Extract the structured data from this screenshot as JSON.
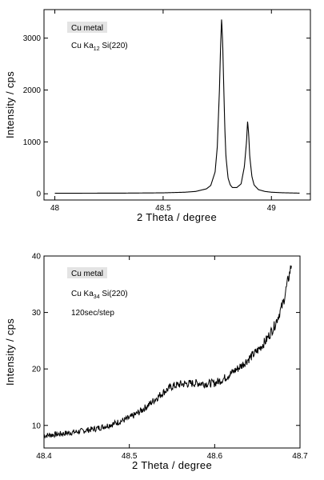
{
  "chart_data": [
    {
      "type": "line",
      "xlabel": "2 Theta / degree",
      "ylabel": "Intensity / cps",
      "xlim": [
        47.95,
        49.18
      ],
      "ylim": [
        -120,
        3550
      ],
      "xticks": [
        48,
        48.5,
        49
      ],
      "xtick_labels": [
        "48",
        "48.5",
        "49"
      ],
      "yticks": [
        0,
        1000,
        2000,
        3000
      ],
      "ytick_labels": [
        "0",
        "1000",
        "2000",
        "3000"
      ],
      "grid": false,
      "legend": "none",
      "annotations": {
        "sample": "Cu metal",
        "radiation_main": "Cu Ka",
        "radiation_sub": "12",
        "radiation_rest": " Si(220)"
      },
      "series": [
        {
          "x": [
            48.0,
            48.3,
            48.5,
            48.6,
            48.65,
            48.7,
            48.72,
            48.74,
            48.75,
            48.76,
            48.765,
            48.77,
            48.775,
            48.78,
            48.785,
            48.79,
            48.8,
            48.81,
            48.82,
            48.84,
            48.86,
            48.875,
            48.885,
            48.89,
            48.895,
            48.9,
            48.91,
            48.92,
            48.94,
            48.97,
            49.0,
            49.05,
            49.1,
            49.13
          ],
          "y": [
            10,
            12,
            18,
            30,
            45,
            95,
            160,
            420,
            900,
            2000,
            2800,
            3380,
            2900,
            2050,
            1250,
            720,
            300,
            170,
            120,
            120,
            190,
            520,
            1000,
            1400,
            1150,
            720,
            330,
            170,
            80,
            45,
            30,
            20,
            15,
            12
          ]
        }
      ]
    },
    {
      "type": "line",
      "xlabel": "2 Theta / degree",
      "ylabel": "Intensity / cps",
      "xlim": [
        48.4,
        48.7
      ],
      "ylim": [
        6,
        40
      ],
      "xticks": [
        48.4,
        48.5,
        48.6,
        48.7
      ],
      "xtick_labels": [
        "48.4",
        "48.5",
        "48.6",
        "48.7"
      ],
      "yticks": [
        10,
        20,
        30,
        40
      ],
      "ytick_labels": [
        "10",
        "20",
        "30",
        "40"
      ],
      "grid": false,
      "legend": "none",
      "annotations": {
        "sample": "Cu metal",
        "radiation_main": "Cu Ka",
        "radiation_sub": "34",
        "radiation_rest": " Si(220)",
        "step": "120sec/step"
      },
      "series": [
        {
          "x": [
            48.4,
            48.42,
            48.44,
            48.46,
            48.48,
            48.5,
            48.51,
            48.52,
            48.53,
            48.54,
            48.55,
            48.56,
            48.57,
            48.58,
            48.59,
            48.6,
            48.61,
            48.62,
            48.63,
            48.64,
            48.65,
            48.66,
            48.67,
            48.68,
            48.69
          ],
          "y": [
            8.2,
            8.5,
            8.9,
            9.4,
            10.2,
            11.3,
            12.2,
            13.3,
            14.6,
            15.9,
            16.9,
            17.3,
            17.4,
            17.5,
            17.4,
            17.5,
            18.2,
            19.3,
            20.4,
            21.8,
            23.2,
            25.0,
            27.6,
            31.5,
            38.5
          ]
        }
      ]
    }
  ]
}
